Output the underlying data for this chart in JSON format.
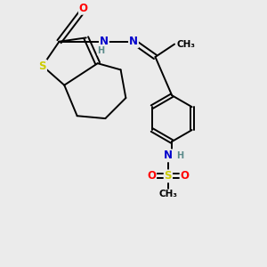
{
  "bg_color": "#ebebeb",
  "atom_colors": {
    "C": "#000000",
    "N": "#0000cc",
    "O": "#ff0000",
    "S": "#cccc00",
    "H": "#5a8a8a"
  },
  "bond_color": "#000000",
  "bond_width": 1.4,
  "figsize": [
    3.0,
    3.0
  ],
  "dpi": 100
}
